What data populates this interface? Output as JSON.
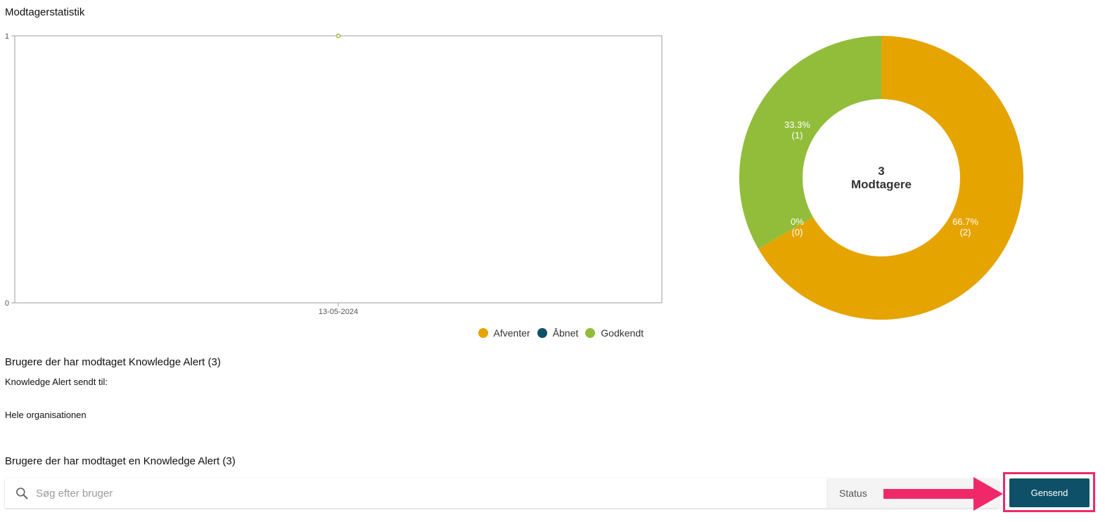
{
  "page": {
    "title": "Modtagerstatistik"
  },
  "colors": {
    "pending": "#e5a400",
    "opened": "#0e5068",
    "approved": "#92bd3a",
    "accent": "#f0286a"
  },
  "chart_data": [
    {
      "type": "line",
      "x": [
        "13-05-2024"
      ],
      "series": [
        {
          "name": "Afventer",
          "color": "#e5a400",
          "values": [
            null
          ]
        },
        {
          "name": "Åbnet",
          "color": "#0e5068",
          "values": [
            null
          ]
        },
        {
          "name": "Godkendt",
          "color": "#92bd3a",
          "values": [
            1
          ]
        }
      ],
      "ylim": [
        0,
        1
      ],
      "yticks": [
        "0",
        "1"
      ],
      "xticks": [
        "13-05-2024"
      ],
      "legend": "bottom-right",
      "grid": false
    },
    {
      "type": "pie",
      "donut": true,
      "slices": [
        {
          "name": "Afventer",
          "value": 2,
          "percent": "66.7%",
          "count": "(2)",
          "color": "#e5a400"
        },
        {
          "name": "Åbnet",
          "value": 0,
          "percent": "0%",
          "count": "(0)",
          "color": "#0e5068"
        },
        {
          "name": "Godkendt",
          "value": 1,
          "percent": "33.3%",
          "count": "(1)",
          "color": "#92bd3a"
        }
      ],
      "center_count": "3",
      "center_label": "Modtagere"
    }
  ],
  "legend": [
    {
      "label": "Afventer",
      "color": "#e5a400"
    },
    {
      "label": "Åbnet",
      "color": "#0e5068"
    },
    {
      "label": "Godkendt",
      "color": "#92bd3a"
    }
  ],
  "recipients": {
    "title": "Brugere der har modtaget Knowledge Alert (3)",
    "sent_to_label": "Knowledge Alert sendt til:",
    "sent_to_value": "Hele organisationen"
  },
  "users": {
    "title": "Brugere der har modtaget en Knowledge Alert (3)",
    "search_placeholder": "Søg efter bruger",
    "search_value": "",
    "status_label": "Status",
    "resend_label": "Gensend"
  }
}
